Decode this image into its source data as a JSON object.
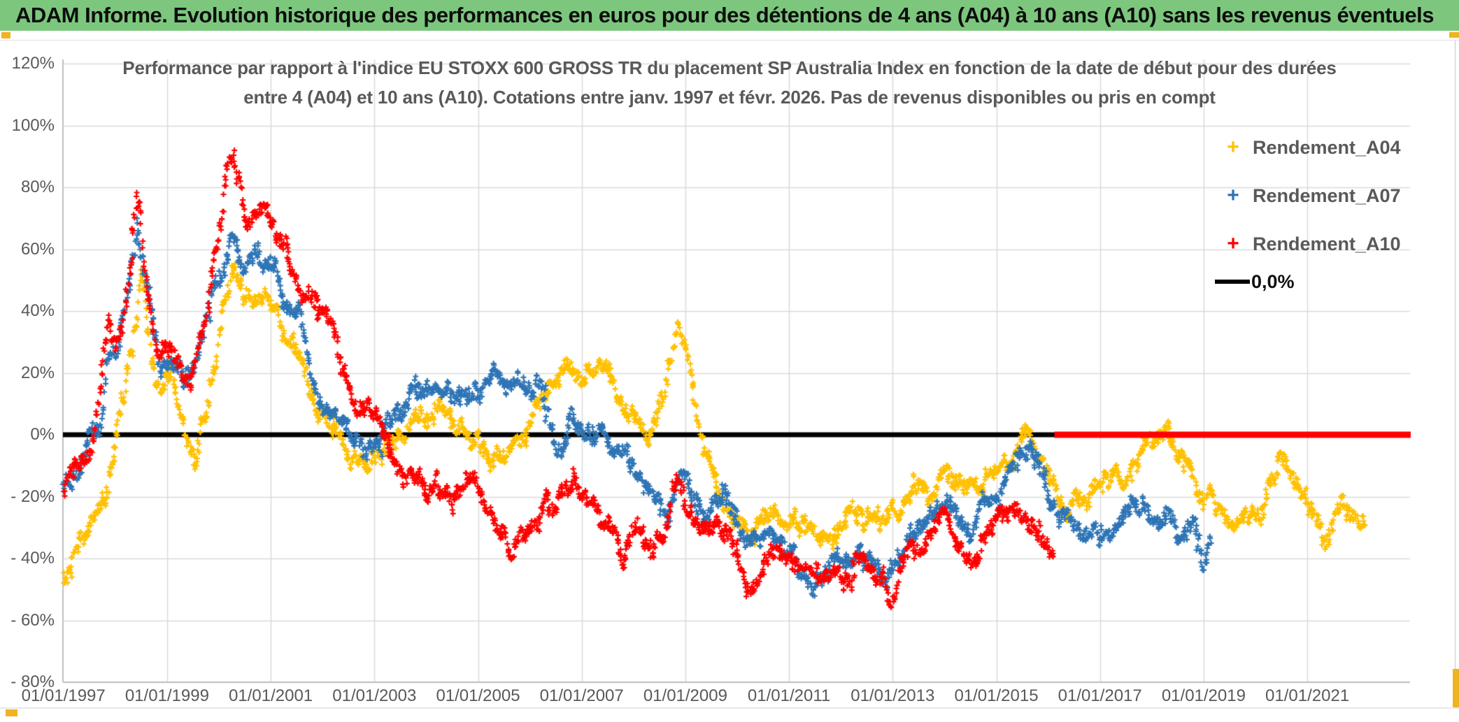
{
  "header": {
    "title": "ADAM Informe. Evolution historique des performances en euros pour des détentions de 4 ans (A04) à 10 ans (A10) sans les revenus éventuels",
    "bg_color": "#7CC77D"
  },
  "chart": {
    "title_line1": "Performance par rapport à l'indice EU STOXX 600 GROSS TR  du placement SP Australia Index en fonction de la date de début pour des durées",
    "title_line2": "entre 4 (A04) et 10 ans (A10). Cotations entre janv. 1997 et févr. 2026. Pas de revenus disponibles ou pris en compt",
    "legend": {
      "items": [
        {
          "label": "Rendement_A04",
          "marker": "+",
          "color": "#FFC000"
        },
        {
          "label": "Rendement_A07",
          "marker": "+",
          "color": "#2E75B6"
        },
        {
          "label": "Rendement_A10",
          "marker": "+",
          "color": "#FF0000"
        }
      ],
      "zero_item": {
        "label": "0,0%",
        "swatch": "line",
        "color": "#000000"
      }
    }
  },
  "chart_data": {
    "type": "scatter",
    "title": "Performance par rapport à l'indice EU STOXX 600 GROSS TR du placement SP Australia Index en fonction de la date de début pour des durées entre 4 (A04) et 10 ans (A10). Cotations entre janv. 1997 et févr. 2026. Pas de revenus disponibles ou pris en compt",
    "x_axis": {
      "start_year": 1997.0,
      "end_year": 2023.0,
      "tick_years": [
        1997,
        1999,
        2001,
        2003,
        2005,
        2007,
        2009,
        2011,
        2013,
        2015,
        2017,
        2019,
        2021
      ],
      "tick_labels": [
        "01/01/1997",
        "01/01/1999",
        "01/01/2001",
        "01/01/2003",
        "01/01/2005",
        "01/01/2007",
        "01/01/2009",
        "01/01/2011",
        "01/01/2013",
        "01/01/2015",
        "01/01/2017",
        "01/01/2019",
        "01/01/2021"
      ]
    },
    "y_axis": {
      "min": -80,
      "max": 120,
      "step": 20,
      "unit": "%",
      "tick_values": [
        120,
        100,
        80,
        60,
        40,
        20,
        0,
        -20,
        -40,
        -60,
        -80
      ],
      "tick_labels": [
        "120%",
        "100%",
        "80%",
        "60%",
        "40%",
        "20%",
        "0%",
        "- 20%",
        "- 40%",
        "- 60%",
        "- 80%"
      ]
    },
    "grid": {
      "horizontal": true,
      "vertical": true,
      "color": "#D9D9D9",
      "axis_color": "#BFBFBF"
    },
    "zero_line": {
      "label": "0,0%",
      "value": 0,
      "color": "#000000"
    },
    "series": [
      {
        "name": "Rendement_A04",
        "color": "#FFC000",
        "marker": "+",
        "keypoints": [
          [
            1997.0,
            -44
          ],
          [
            1997.2,
            -38
          ],
          [
            1997.5,
            -30
          ],
          [
            1997.8,
            -18
          ],
          [
            1998.05,
            0
          ],
          [
            1998.3,
            22
          ],
          [
            1998.5,
            50
          ],
          [
            1998.65,
            34
          ],
          [
            1998.9,
            12
          ],
          [
            1999.1,
            20
          ],
          [
            1999.35,
            2
          ],
          [
            1999.55,
            -8
          ],
          [
            1999.8,
            12
          ],
          [
            2000.05,
            32
          ],
          [
            2000.28,
            50
          ],
          [
            2000.5,
            39
          ],
          [
            2000.8,
            45
          ],
          [
            2001.05,
            46
          ],
          [
            2001.3,
            34
          ],
          [
            2001.6,
            20
          ],
          [
            2001.85,
            8
          ],
          [
            2002.1,
            6
          ],
          [
            2002.5,
            -5
          ],
          [
            2002.8,
            -10
          ],
          [
            2003.1,
            -6
          ],
          [
            2003.5,
            -2
          ],
          [
            2003.9,
            2
          ],
          [
            2004.3,
            6
          ],
          [
            2004.7,
            0
          ],
          [
            2005.1,
            -4
          ],
          [
            2005.45,
            -9
          ],
          [
            2005.8,
            -5
          ],
          [
            2006.1,
            5
          ],
          [
            2006.4,
            15
          ],
          [
            2006.7,
            24
          ],
          [
            2007.0,
            18
          ],
          [
            2007.35,
            22
          ],
          [
            2007.7,
            12
          ],
          [
            2008.0,
            2
          ],
          [
            2008.3,
            -2
          ],
          [
            2008.6,
            15
          ],
          [
            2008.86,
            37
          ],
          [
            2009.1,
            20
          ],
          [
            2009.35,
            -5
          ],
          [
            2009.6,
            -18
          ],
          [
            2009.9,
            -25
          ],
          [
            2010.35,
            -32
          ],
          [
            2010.6,
            -24
          ],
          [
            2011.0,
            -28
          ],
          [
            2011.6,
            -35
          ],
          [
            2012.0,
            -30
          ],
          [
            2012.35,
            -28
          ],
          [
            2012.7,
            -25
          ],
          [
            2013.0,
            -27
          ],
          [
            2013.3,
            -22
          ],
          [
            2013.6,
            -19
          ],
          [
            2014.05,
            -15
          ],
          [
            2014.45,
            -22
          ],
          [
            2014.7,
            -18
          ],
          [
            2014.95,
            -14
          ],
          [
            2015.2,
            -8
          ],
          [
            2015.6,
            3
          ],
          [
            2015.9,
            -5
          ],
          [
            2016.2,
            -16
          ],
          [
            2016.4,
            -22
          ],
          [
            2016.7,
            -18
          ],
          [
            2017.0,
            -20
          ],
          [
            2017.3,
            -15
          ],
          [
            2017.6,
            -12
          ],
          [
            2017.95,
            -5
          ],
          [
            2018.3,
            2
          ],
          [
            2018.6,
            -8
          ],
          [
            2018.9,
            -18
          ],
          [
            2019.2,
            -22
          ],
          [
            2019.5,
            -25
          ],
          [
            2019.9,
            -27
          ],
          [
            2020.15,
            -20
          ],
          [
            2020.45,
            -8
          ],
          [
            2020.7,
            -12
          ],
          [
            2020.95,
            -18
          ],
          [
            2021.15,
            -25
          ],
          [
            2021.4,
            -32
          ],
          [
            2021.65,
            -26
          ],
          [
            2021.9,
            -25
          ],
          [
            2022.1,
            -27
          ]
        ]
      },
      {
        "name": "Rendement_A07",
        "color": "#2E75B6",
        "marker": "+",
        "keypoints": [
          [
            1997.0,
            -20
          ],
          [
            1997.35,
            -10
          ],
          [
            1997.7,
            0
          ],
          [
            1997.85,
            25
          ],
          [
            1998.0,
            20
          ],
          [
            1998.2,
            38
          ],
          [
            1998.42,
            70
          ],
          [
            1998.6,
            45
          ],
          [
            1998.85,
            22
          ],
          [
            1999.1,
            25
          ],
          [
            1999.45,
            16
          ],
          [
            1999.7,
            30
          ],
          [
            1999.95,
            48
          ],
          [
            2000.25,
            67
          ],
          [
            2000.5,
            55
          ],
          [
            2000.75,
            60
          ],
          [
            2001.0,
            57
          ],
          [
            2001.3,
            45
          ],
          [
            2001.55,
            38
          ],
          [
            2001.8,
            22
          ],
          [
            2002.0,
            12
          ],
          [
            2002.4,
            5
          ],
          [
            2002.85,
            -5
          ],
          [
            2003.2,
            3
          ],
          [
            2003.6,
            12
          ],
          [
            2003.95,
            15
          ],
          [
            2004.3,
            8
          ],
          [
            2004.7,
            12
          ],
          [
            2005.05,
            15
          ],
          [
            2005.5,
            18
          ],
          [
            2005.9,
            14
          ],
          [
            2006.15,
            19
          ],
          [
            2006.5,
            -4
          ],
          [
            2006.8,
            8
          ],
          [
            2007.1,
            2
          ],
          [
            2007.45,
            -3
          ],
          [
            2007.8,
            -8
          ],
          [
            2008.25,
            -18
          ],
          [
            2008.6,
            -24
          ],
          [
            2008.86,
            -14
          ],
          [
            2009.1,
            -20
          ],
          [
            2009.45,
            -26
          ],
          [
            2009.7,
            -21
          ],
          [
            2010.0,
            -27
          ],
          [
            2010.3,
            -35
          ],
          [
            2010.6,
            -32
          ],
          [
            2011.0,
            -38
          ],
          [
            2011.6,
            -45
          ],
          [
            2012.0,
            -40
          ],
          [
            2012.4,
            -38
          ],
          [
            2012.9,
            -48
          ],
          [
            2013.3,
            -35
          ],
          [
            2013.8,
            -25
          ],
          [
            2014.15,
            -20
          ],
          [
            2014.5,
            -32
          ],
          [
            2014.9,
            -20
          ],
          [
            2015.2,
            -12
          ],
          [
            2015.65,
            -1
          ],
          [
            2016.0,
            -15
          ],
          [
            2016.3,
            -27
          ],
          [
            2016.7,
            -32
          ],
          [
            2017.1,
            -30
          ],
          [
            2017.5,
            -24
          ],
          [
            2017.8,
            -21
          ],
          [
            2018.1,
            -28
          ],
          [
            2018.5,
            -32
          ],
          [
            2018.8,
            -28
          ],
          [
            2019.0,
            -38
          ],
          [
            2019.15,
            -33
          ]
        ]
      },
      {
        "name": "Rendement_A10",
        "color": "#FF0000",
        "marker": "+",
        "keypoints": [
          [
            1997.0,
            -19
          ],
          [
            1997.3,
            -10
          ],
          [
            1997.6,
            0
          ],
          [
            1997.85,
            35
          ],
          [
            1998.0,
            22
          ],
          [
            1998.15,
            30
          ],
          [
            1998.42,
            78
          ],
          [
            1998.6,
            50
          ],
          [
            1998.85,
            25
          ],
          [
            1999.1,
            30
          ],
          [
            1999.45,
            18
          ],
          [
            1999.7,
            35
          ],
          [
            1999.95,
            60
          ],
          [
            2000.25,
            91
          ],
          [
            2000.55,
            68
          ],
          [
            2000.9,
            77
          ],
          [
            2001.1,
            65
          ],
          [
            2001.35,
            58
          ],
          [
            2001.6,
            48
          ],
          [
            2002.0,
            39
          ],
          [
            2002.35,
            25
          ],
          [
            2002.7,
            12
          ],
          [
            2003.0,
            8
          ],
          [
            2003.35,
            -5
          ],
          [
            2003.6,
            -14
          ],
          [
            2004.0,
            -16
          ],
          [
            2004.35,
            -19
          ],
          [
            2004.8,
            -13
          ],
          [
            2005.05,
            -16
          ],
          [
            2005.3,
            -28
          ],
          [
            2005.65,
            -39
          ],
          [
            2005.9,
            -33
          ],
          [
            2006.2,
            -25
          ],
          [
            2006.6,
            -17
          ],
          [
            2006.85,
            -14
          ],
          [
            2007.2,
            -26
          ],
          [
            2007.5,
            -33
          ],
          [
            2007.8,
            -38
          ],
          [
            2008.05,
            -29
          ],
          [
            2008.4,
            -34
          ],
          [
            2008.7,
            -22
          ],
          [
            2008.86,
            -14
          ],
          [
            2009.1,
            -28
          ],
          [
            2009.4,
            -33
          ],
          [
            2009.6,
            -30
          ],
          [
            2009.9,
            -37
          ],
          [
            2010.25,
            -53
          ],
          [
            2010.55,
            -41
          ],
          [
            2010.8,
            -38
          ],
          [
            2011.2,
            -44
          ],
          [
            2011.8,
            -51
          ],
          [
            2012.3,
            -38
          ],
          [
            2012.6,
            -42
          ],
          [
            2012.95,
            -48
          ],
          [
            2013.3,
            -38
          ],
          [
            2013.7,
            -34
          ],
          [
            2014.05,
            -30
          ],
          [
            2014.5,
            -38
          ],
          [
            2014.9,
            -30
          ],
          [
            2015.2,
            -27
          ],
          [
            2015.55,
            -26
          ],
          [
            2015.9,
            -33
          ],
          [
            2016.1,
            -36
          ]
        ],
        "zero_fill_segment": {
          "from_year": 2016.12,
          "to_year": 2023.0,
          "value": 0
        }
      }
    ]
  }
}
